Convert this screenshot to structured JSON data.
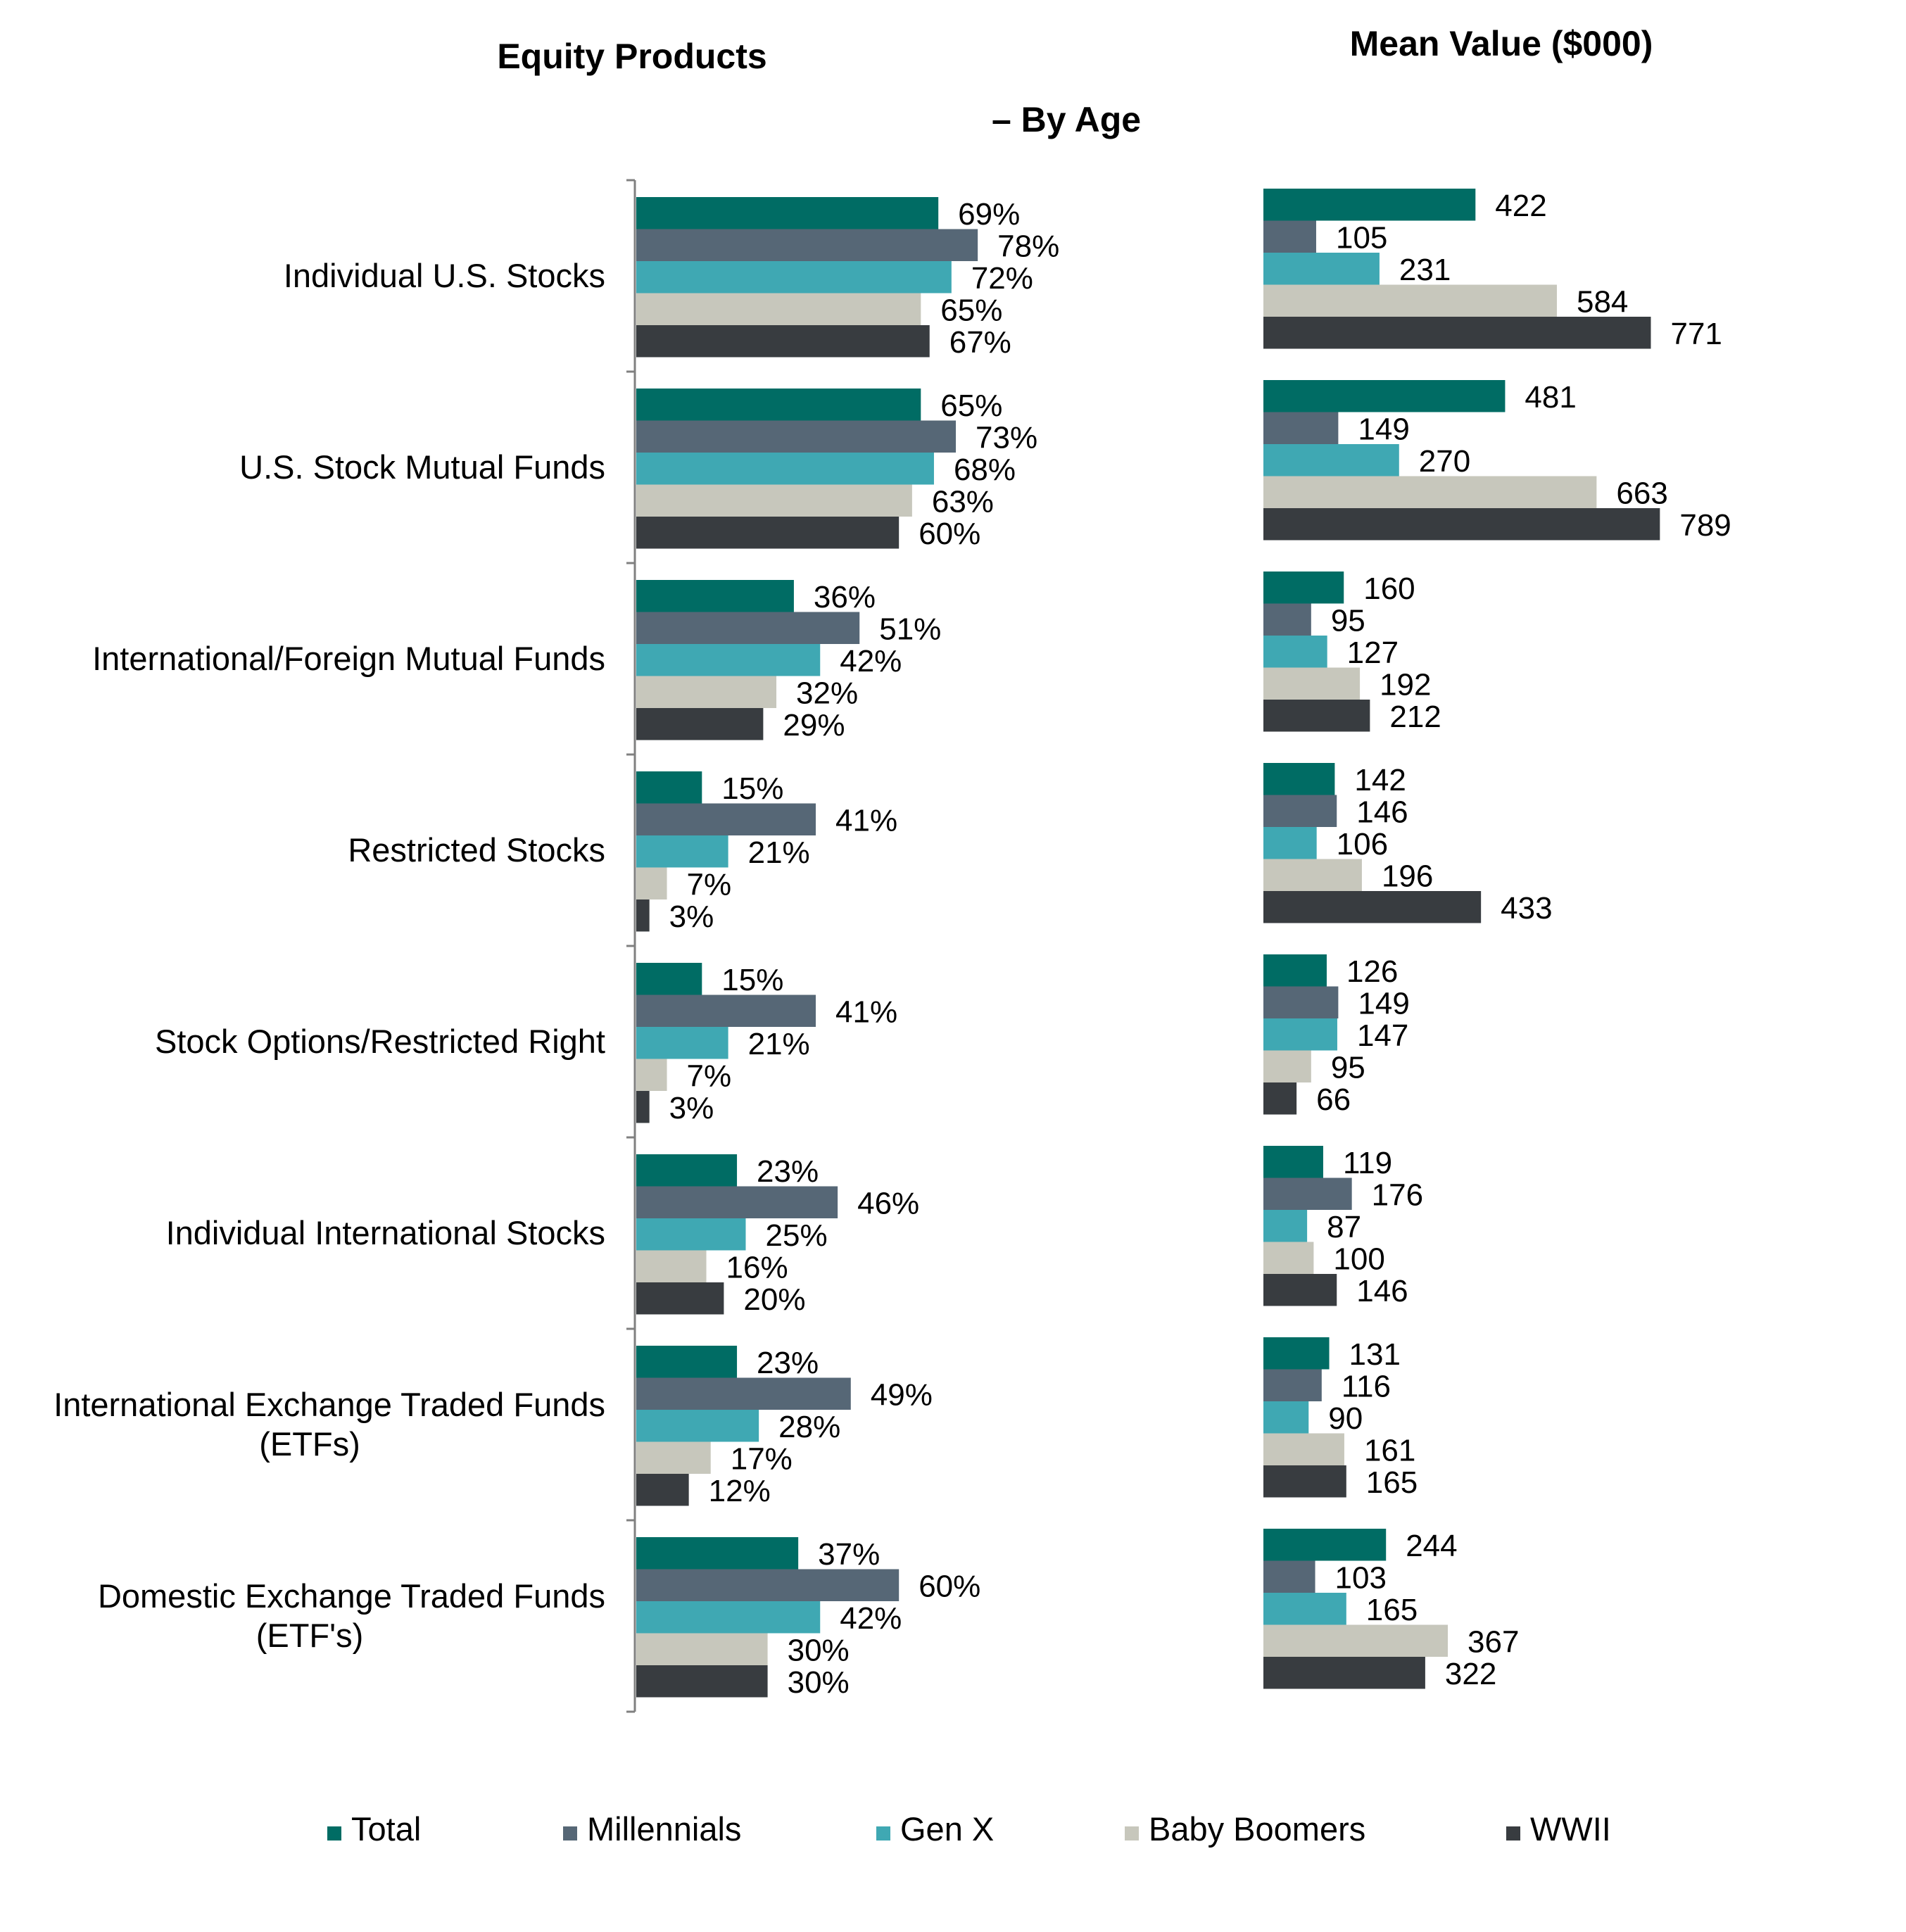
{
  "chart_data": [
    {
      "type": "bar",
      "orientation": "horizontal",
      "title": "Equity Products",
      "subtitle": "– By Age",
      "categories": [
        "Individual U.S. Stocks",
        "U.S. Stock Mutual Funds",
        "International/Foreign Mutual Funds",
        "Restricted Stocks",
        "Stock Options/Restricted Right",
        "Individual International Stocks",
        "International Exchange Traded Funds (ETFs)",
        "Domestic Exchange Traded Funds (ETF's)"
      ],
      "unit_suffix": "%",
      "xlim": [
        0,
        100
      ],
      "series": [
        {
          "name": "Total",
          "values": [
            69,
            65,
            36,
            15,
            15,
            23,
            23,
            37
          ]
        },
        {
          "name": "Millennials",
          "values": [
            78,
            73,
            51,
            41,
            41,
            46,
            49,
            60
          ]
        },
        {
          "name": "Gen X",
          "values": [
            72,
            68,
            42,
            21,
            21,
            25,
            28,
            42
          ]
        },
        {
          "name": "Baby Boomers",
          "values": [
            65,
            63,
            32,
            7,
            7,
            16,
            17,
            30
          ]
        },
        {
          "name": "WWII",
          "values": [
            67,
            60,
            29,
            3,
            3,
            20,
            12,
            30
          ]
        }
      ]
    },
    {
      "type": "bar",
      "orientation": "horizontal",
      "title": "Mean Value ($000)",
      "categories": [
        "Individual U.S. Stocks",
        "U.S. Stock Mutual Funds",
        "International/Foreign Mutual Funds",
        "Restricted Stocks",
        "Stock Options/Restricted Right",
        "Individual International Stocks",
        "International Exchange Traded Funds (ETFs)",
        "Domestic Exchange Traded Funds (ETF's)"
      ],
      "unit_suffix": "",
      "xlim": [
        0,
        900
      ],
      "series": [
        {
          "name": "Total",
          "values": [
            422,
            481,
            160,
            142,
            126,
            119,
            131,
            244
          ]
        },
        {
          "name": "Millennials",
          "values": [
            105,
            149,
            95,
            146,
            149,
            176,
            116,
            103
          ]
        },
        {
          "name": "Gen X",
          "values": [
            231,
            270,
            127,
            106,
            147,
            87,
            90,
            165
          ]
        },
        {
          "name": "Baby Boomers",
          "values": [
            584,
            663,
            192,
            196,
            95,
            100,
            161,
            367
          ]
        },
        {
          "name": "WWII",
          "values": [
            771,
            789,
            212,
            433,
            66,
            146,
            165,
            322
          ]
        }
      ]
    }
  ],
  "category_labels": [
    [
      "Individual U.S. Stocks"
    ],
    [
      "U.S. Stock Mutual Funds"
    ],
    [
      "International/Foreign Mutual Funds"
    ],
    [
      "Restricted Stocks"
    ],
    [
      "Stock Options/Restricted Right"
    ],
    [
      "Individual International Stocks"
    ],
    [
      "International Exchange Traded Funds",
      "(ETFs)"
    ],
    [
      "Domestic Exchange Traded Funds",
      "(ETF's)"
    ]
  ],
  "legend": {
    "placement": "bottom",
    "items": [
      "Total",
      "Millennials",
      "Gen X",
      "Baby Boomers",
      "WWII"
    ]
  },
  "colors": {
    "Total": "#006C64",
    "Millennials": "#566776",
    "Gen X": "#3FA8B3",
    "Baby Boomers": "#C7C7BC",
    "WWII": "#383C40",
    "axis": "#808080",
    "text": "#000000"
  }
}
